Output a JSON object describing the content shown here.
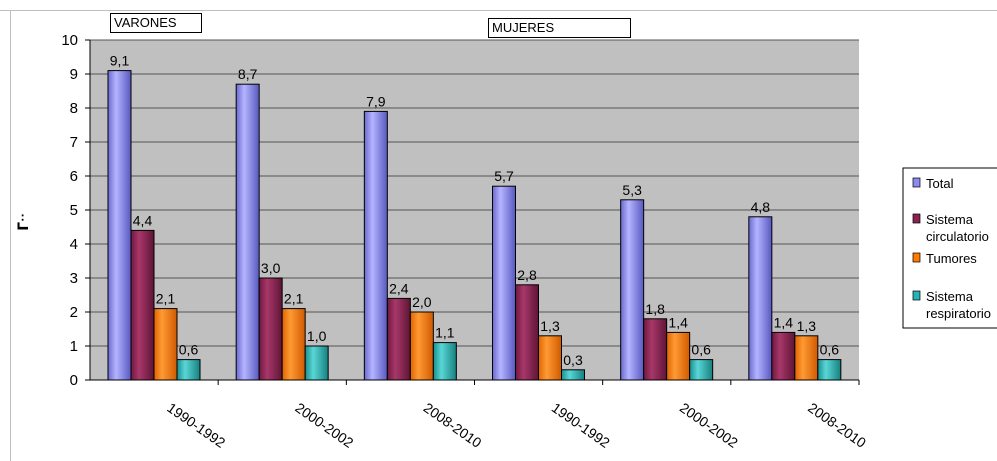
{
  "chart_data": {
    "type": "bar",
    "categories": [
      "1990-1992",
      "2000-2002",
      "2008-2010",
      "1990-1992",
      "2000-2002",
      "2008-2010"
    ],
    "group_labels": [
      "VARONES",
      "MUJERES"
    ],
    "series": [
      {
        "name": "Total",
        "values": [
          9.1,
          8.7,
          7.9,
          5.7,
          5.3,
          4.8
        ],
        "labels": [
          "9,1",
          "8,7",
          "7,9",
          "5,7",
          "5,3",
          "4,8"
        ],
        "color": "#8c8cf0"
      },
      {
        "name": "Sistema circulatorio",
        "legend_lines": [
          "Sistema",
          "circulatorio"
        ],
        "values": [
          4.4,
          3.0,
          2.4,
          2.8,
          1.8,
          1.4
        ],
        "labels": [
          "4,4",
          "3,0",
          "2,4",
          "2,8",
          "1,8",
          "1,4"
        ],
        "color": "#8b2252"
      },
      {
        "name": "Tumores",
        "values": [
          2.1,
          2.1,
          2.0,
          1.3,
          1.4,
          1.3
        ],
        "labels": [
          "2,1",
          "2,1",
          "2,0",
          "1,3",
          "1,4",
          "1,3"
        ],
        "color": "#ff7a00"
      },
      {
        "name": "Sistema respiratorio",
        "legend_lines": [
          "Sistema",
          "respiratorio"
        ],
        "values": [
          0.6,
          1.0,
          1.1,
          0.3,
          0.6,
          0.6
        ],
        "labels": [
          "0,6",
          "1,0",
          "1,1",
          "0,3",
          "0,6",
          "0,6"
        ],
        "color": "#26b3b3"
      }
    ],
    "y_ticks": [
      "0",
      "1",
      "2",
      "3",
      "4",
      "5",
      "6",
      "7",
      "8",
      "9",
      "10"
    ],
    "ylim": [
      0,
      10
    ],
    "ylabel": "ᒥᐧᐧ",
    "grid": true,
    "plot_background": "#c0c0c0",
    "legend_position": "right"
  }
}
